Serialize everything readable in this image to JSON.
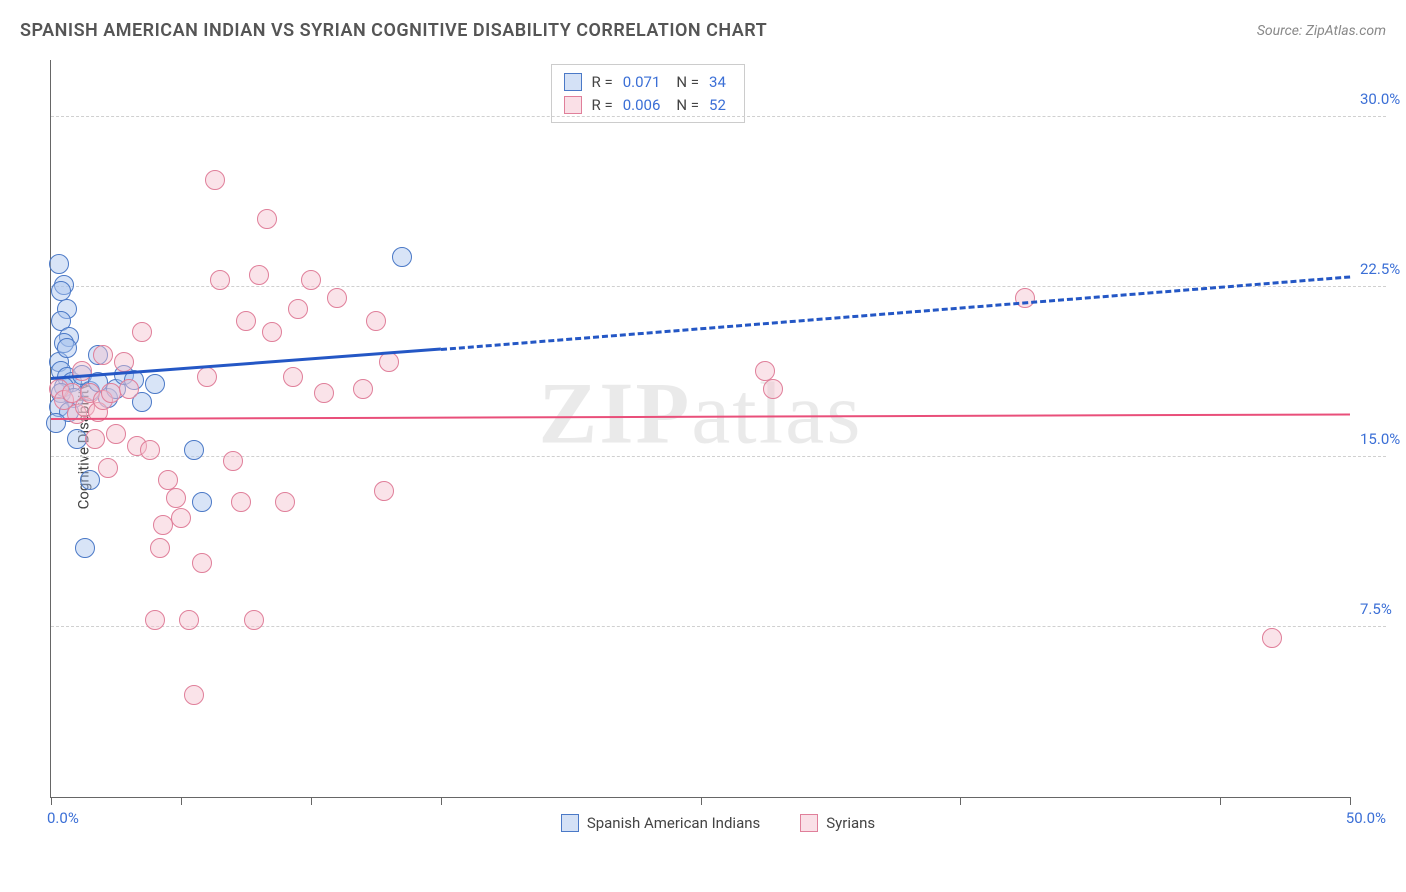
{
  "title": "SPANISH AMERICAN INDIAN VS SYRIAN COGNITIVE DISABILITY CORRELATION CHART",
  "source_label": "Source: ZipAtlas.com",
  "y_axis_label": "Cognitive Disability",
  "watermark_text": "ZIPatlas",
  "chart": {
    "type": "scatter",
    "background_color": "#ffffff",
    "grid_color": "#d0d0d0",
    "axis_color": "#666666",
    "label_color": "#3b6fd6",
    "x": {
      "min": 0,
      "max": 50,
      "ticks": [
        0,
        5,
        10,
        15,
        25,
        35,
        45,
        50
      ],
      "corner_min_label": "0.0%",
      "corner_max_label": "50.0%"
    },
    "y": {
      "min": 0,
      "max": 32.5,
      "ticks": [
        7.5,
        15.0,
        22.5,
        30.0
      ],
      "tick_labels": [
        "7.5%",
        "15.0%",
        "22.5%",
        "30.0%"
      ]
    },
    "marker_radius": 10,
    "marker_border_width": 1.5,
    "marker_fill_opacity": 0.25,
    "series": [
      {
        "key": "sai",
        "label": "Spanish American Indians",
        "color_fill": "#a9c4ed",
        "color_border": "#4b79c7",
        "R": "0.071",
        "N": "34",
        "trend": {
          "color": "#2457c5",
          "width": 3,
          "start": [
            0,
            18.5
          ],
          "solid_end": [
            15,
            19.8
          ],
          "dash_end": [
            50,
            23.0
          ]
        },
        "points": [
          [
            0.3,
            23.5
          ],
          [
            0.5,
            22.6
          ],
          [
            0.4,
            22.3
          ],
          [
            0.6,
            21.5
          ],
          [
            0.4,
            21.0
          ],
          [
            0.7,
            20.3
          ],
          [
            0.5,
            20.0
          ],
          [
            0.3,
            19.2
          ],
          [
            0.4,
            18.8
          ],
          [
            0.6,
            18.5
          ],
          [
            0.8,
            18.3
          ],
          [
            0.5,
            18.1
          ],
          [
            0.4,
            17.8
          ],
          [
            0.9,
            17.6
          ],
          [
            0.3,
            17.2
          ],
          [
            0.7,
            17.0
          ],
          [
            0.2,
            16.5
          ],
          [
            1.2,
            18.6
          ],
          [
            1.5,
            17.9
          ],
          [
            1.8,
            18.3
          ],
          [
            2.2,
            17.6
          ],
          [
            2.5,
            18.0
          ],
          [
            1.8,
            19.5
          ],
          [
            2.8,
            18.6
          ],
          [
            3.2,
            18.4
          ],
          [
            1.5,
            14.0
          ],
          [
            1.3,
            11.0
          ],
          [
            1.0,
            15.8
          ],
          [
            5.5,
            15.3
          ],
          [
            5.8,
            13.0
          ],
          [
            13.5,
            23.8
          ],
          [
            4.0,
            18.2
          ],
          [
            3.5,
            17.4
          ],
          [
            0.6,
            19.8
          ]
        ]
      },
      {
        "key": "syr",
        "label": "Syrians",
        "color_fill": "#f5c2cf",
        "color_border": "#e07f9a",
        "R": "0.006",
        "N": "52",
        "trend": {
          "color": "#e94f7a",
          "width": 2,
          "start": [
            0,
            16.7
          ],
          "solid_end": [
            50,
            16.9
          ]
        },
        "points": [
          [
            0.3,
            18.0
          ],
          [
            0.5,
            17.5
          ],
          [
            0.8,
            17.8
          ],
          [
            1.0,
            16.9
          ],
          [
            1.3,
            17.2
          ],
          [
            1.5,
            17.8
          ],
          [
            1.8,
            17.0
          ],
          [
            2.0,
            17.5
          ],
          [
            2.3,
            17.8
          ],
          [
            2.5,
            16.0
          ],
          [
            2.8,
            19.2
          ],
          [
            3.0,
            18.0
          ],
          [
            3.3,
            15.5
          ],
          [
            3.5,
            20.5
          ],
          [
            4.0,
            7.8
          ],
          [
            4.2,
            11.0
          ],
          [
            4.5,
            14.0
          ],
          [
            4.8,
            13.2
          ],
          [
            5.0,
            12.3
          ],
          [
            5.3,
            7.8
          ],
          [
            5.5,
            4.5
          ],
          [
            5.8,
            10.3
          ],
          [
            6.0,
            18.5
          ],
          [
            6.3,
            27.2
          ],
          [
            6.5,
            22.8
          ],
          [
            7.0,
            14.8
          ],
          [
            7.3,
            13.0
          ],
          [
            7.5,
            21.0
          ],
          [
            7.8,
            7.8
          ],
          [
            8.0,
            23.0
          ],
          [
            8.3,
            25.5
          ],
          [
            8.5,
            20.5
          ],
          [
            9.0,
            13.0
          ],
          [
            9.3,
            18.5
          ],
          [
            9.5,
            21.5
          ],
          [
            10.0,
            22.8
          ],
          [
            10.5,
            17.8
          ],
          [
            11.0,
            22.0
          ],
          [
            12.0,
            18.0
          ],
          [
            12.5,
            21.0
          ],
          [
            13.0,
            19.2
          ],
          [
            12.8,
            13.5
          ],
          [
            2.0,
            19.5
          ],
          [
            3.8,
            15.3
          ],
          [
            4.3,
            12.0
          ],
          [
            1.2,
            18.8
          ],
          [
            1.7,
            15.8
          ],
          [
            2.2,
            14.5
          ],
          [
            27.5,
            18.8
          ],
          [
            27.8,
            18.0
          ],
          [
            37.5,
            22.0
          ],
          [
            47.0,
            7.0
          ]
        ]
      }
    ]
  },
  "r_legend": {
    "r_prefix": "R  =",
    "n_prefix": "N  ="
  },
  "bottom_legend": {
    "items": [
      "Spanish American Indians",
      "Syrians"
    ]
  }
}
